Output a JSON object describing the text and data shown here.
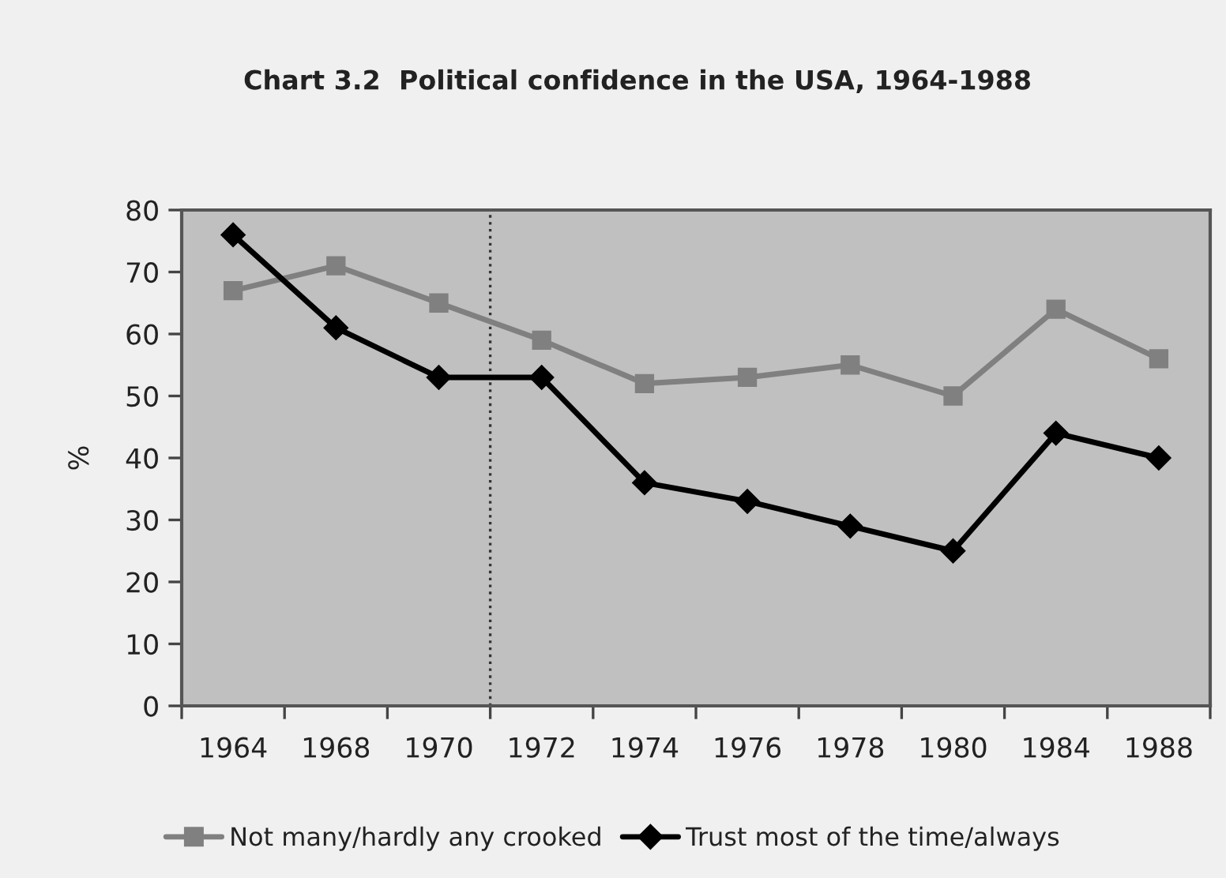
{
  "chart_data": {
    "type": "line",
    "title": "Chart 3.2  Political confidence in the USA, 1964-1988",
    "ylabel": "%",
    "categories": [
      "1964",
      "1968",
      "1970",
      "1972",
      "1974",
      "1976",
      "1978",
      "1980",
      "1984",
      "1988"
    ],
    "series": [
      {
        "name": "Not many/hardly any crooked",
        "color": "#808080",
        "marker": "square",
        "values": [
          67,
          71,
          65,
          59,
          52,
          53,
          55,
          50,
          64,
          56
        ]
      },
      {
        "name": "Trust most of the time/always",
        "color": "#000000",
        "marker": "diamond",
        "values": [
          76,
          61,
          53,
          53,
          36,
          33,
          29,
          25,
          44,
          40
        ]
      }
    ],
    "ylim": [
      0,
      80
    ],
    "yticks": [
      0,
      10,
      20,
      30,
      40,
      50,
      60,
      70,
      80
    ],
    "line_style": "solid",
    "legend": "bottom"
  }
}
